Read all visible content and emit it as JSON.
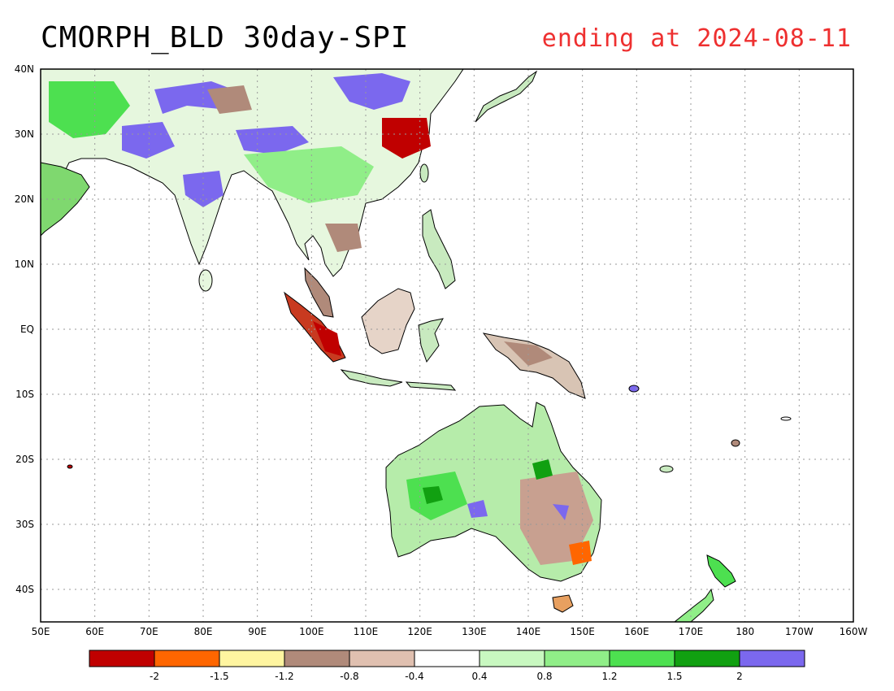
{
  "title": "CMORPH_BLD 30day-SPI",
  "subtitle": "ending at 2024-08-11",
  "axes": {
    "lat_labels": [
      "40N",
      "30N",
      "20N",
      "10N",
      "EQ",
      "10S",
      "20S",
      "30S",
      "40S"
    ],
    "lon_labels": [
      "50E",
      "60E",
      "70E",
      "80E",
      "90E",
      "100E",
      "110E",
      "120E",
      "130E",
      "140E",
      "150E",
      "160E",
      "170E",
      "180",
      "170W",
      "160W"
    ]
  },
  "legend": {
    "colors": [
      "#c00000",
      "#ff6600",
      "#fff5a0",
      "#b08a7a",
      "#e0c0b0",
      "#ffffff",
      "#c8f8c0",
      "#90ee88",
      "#4de050",
      "#11a011",
      "#7b68ee"
    ],
    "labels": [
      "-2",
      "-1.5",
      "-1.2",
      "-0.8",
      "-0.4",
      "0.4",
      "0.8",
      "1.2",
      "1.5",
      "2"
    ]
  },
  "colors": {
    "title": "#000000",
    "subtitle": "#ee3030",
    "grid": "#999999"
  }
}
